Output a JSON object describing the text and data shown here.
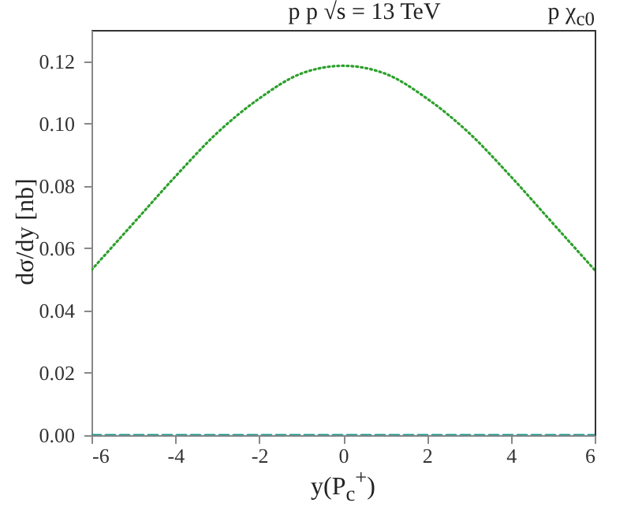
{
  "chart_data": {
    "type": "line",
    "title": "p p √s = 13 TeV",
    "annotations": [
      "p χ$_{c0}$"
    ],
    "xlabel": "y(P$_{c}$$^{+}$)",
    "ylabel": "dσ/dy [nb]",
    "x": [
      -6,
      -5,
      -4,
      -3,
      -2,
      -1,
      0,
      1,
      2,
      3,
      4,
      5,
      6
    ],
    "series": [
      {
        "color": "#2ca02c",
        "line_style": "dotted",
        "values": [
          0.053,
          0.068,
          0.083,
          0.097,
          0.108,
          0.116,
          0.1185,
          0.116,
          0.108,
          0.097,
          0.083,
          0.068,
          0.053
        ]
      },
      {
        "color": "#17998a",
        "line_style": "dashed",
        "values": [
          0,
          0,
          0,
          0,
          0,
          0,
          0,
          0,
          0,
          0,
          0,
          0,
          0
        ]
      }
    ],
    "xlim": [
      -6,
      6
    ],
    "xticks": [
      -6,
      -4,
      -2,
      0,
      2,
      4,
      6
    ],
    "ylim": [
      0,
      0.13
    ],
    "yticks": [
      {
        "value": 0,
        "label": "0.00"
      },
      0.02,
      0.04,
      0.06,
      0.08,
      {
        "value": 0.1,
        "label": "0.10"
      },
      0.12
    ],
    "grid": false,
    "marker": "none"
  }
}
